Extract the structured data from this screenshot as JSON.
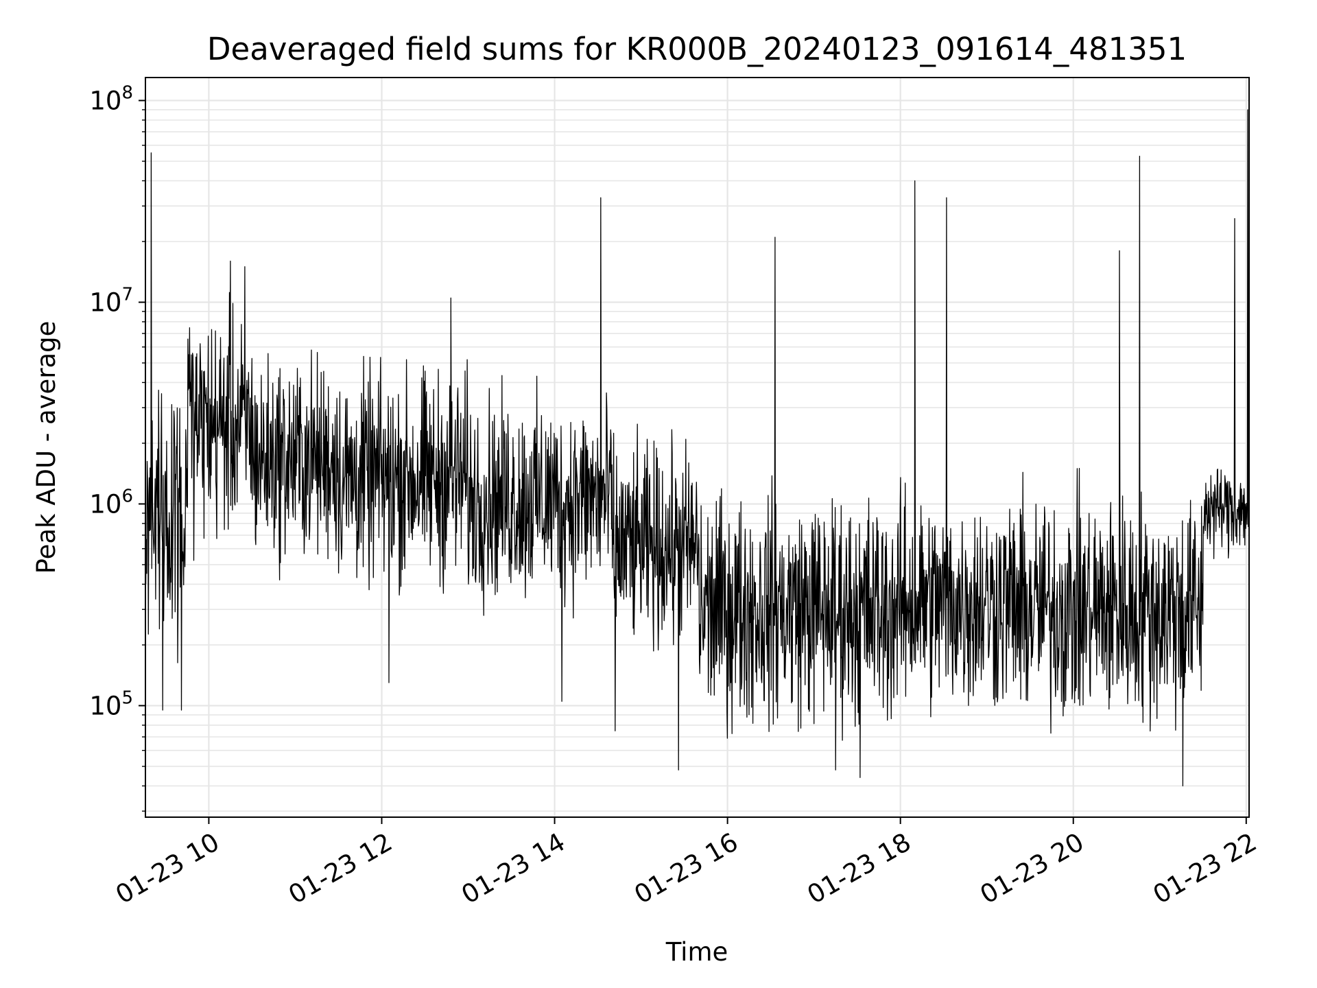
{
  "chart_data": {
    "type": "line",
    "title": "Deaveraged field sums for KR000B_20240123_091614_481351",
    "xlabel": "Time",
    "ylabel": "Peak ADU - average",
    "xscale": "time",
    "yscale": "log",
    "xlim": [
      "2024-01-23 09:16",
      "2024-01-23 22:02"
    ],
    "ylim": [
      28000,
      130000000
    ],
    "x_ticks": [
      {
        "t": "2024-01-23 10:00",
        "label": "01-23 10"
      },
      {
        "t": "2024-01-23 12:00",
        "label": "01-23 12"
      },
      {
        "t": "2024-01-23 14:00",
        "label": "01-23 14"
      },
      {
        "t": "2024-01-23 16:00",
        "label": "01-23 16"
      },
      {
        "t": "2024-01-23 18:00",
        "label": "01-23 18"
      },
      {
        "t": "2024-01-23 20:00",
        "label": "01-23 20"
      },
      {
        "t": "2024-01-23 22:00",
        "label": "01-23 22"
      }
    ],
    "y_ticks": [
      {
        "value": 100000,
        "base": "10",
        "exp": "5"
      },
      {
        "value": 1000000,
        "base": "10",
        "exp": "6"
      },
      {
        "value": 10000000,
        "base": "10",
        "exp": "7"
      },
      {
        "value": 100000000,
        "base": "10",
        "exp": "8"
      }
    ],
    "grid": true,
    "line_color": "#000000",
    "segments": [
      {
        "x_start": "2024-01-23 09:16",
        "x_end": "2024-01-23 09:45",
        "low": 150000,
        "high": 5000000
      },
      {
        "x_start": "2024-01-23 09:45",
        "x_end": "2024-01-23 10:30",
        "low": 500000,
        "high": 12000000
      },
      {
        "x_start": "2024-01-23 10:30",
        "x_end": "2024-01-23 11:30",
        "low": 400000,
        "high": 7000000
      },
      {
        "x_start": "2024-01-23 11:30",
        "x_end": "2024-01-23 13:00",
        "low": 300000,
        "high": 6000000
      },
      {
        "x_start": "2024-01-23 13:00",
        "x_end": "2024-01-23 14:40",
        "low": 250000,
        "high": 4500000
      },
      {
        "x_start": "2024-01-23 14:40",
        "x_end": "2024-01-23 15:40",
        "low": 150000,
        "high": 2500000
      },
      {
        "x_start": "2024-01-23 15:40",
        "x_end": "2024-01-23 18:00",
        "low": 60000,
        "high": 1500000
      },
      {
        "x_start": "2024-01-23 18:00",
        "x_end": "2024-01-23 19:20",
        "low": 70000,
        "high": 1500000
      },
      {
        "x_start": "2024-01-23 19:20",
        "x_end": "2024-01-23 21:30",
        "low": 60000,
        "high": 1500000
      },
      {
        "x_start": "2024-01-23 21:30",
        "x_end": "2024-01-23 22:02",
        "low": 500000,
        "high": 1800000
      }
    ],
    "spikes": [
      {
        "t": "2024-01-23 09:20",
        "value": 55000000
      },
      {
        "t": "2024-01-23 10:15",
        "value": 16000000
      },
      {
        "t": "2024-01-23 10:25",
        "value": 15000000
      },
      {
        "t": "2024-01-23 12:48",
        "value": 10500000
      },
      {
        "t": "2024-01-23 14:32",
        "value": 33000000
      },
      {
        "t": "2024-01-23 16:33",
        "value": 21000000
      },
      {
        "t": "2024-01-23 18:10",
        "value": 40000000
      },
      {
        "t": "2024-01-23 18:32",
        "value": 33000000
      },
      {
        "t": "2024-01-23 20:32",
        "value": 18000000
      },
      {
        "t": "2024-01-23 20:46",
        "value": 53000000
      },
      {
        "t": "2024-01-23 21:52",
        "value": 26000000
      },
      {
        "t": "2024-01-23 22:01",
        "value": 90000000
      }
    ],
    "dips": [
      {
        "t": "2024-01-23 09:28",
        "value": 95000.0
      },
      {
        "t": "2024-01-23 09:41",
        "value": 95000
      },
      {
        "t": "2024-01-23 12:05",
        "value": 130000
      },
      {
        "t": "2024-01-23 14:05",
        "value": 105000
      },
      {
        "t": "2024-01-23 14:42",
        "value": 75000
      },
      {
        "t": "2024-01-23 15:26",
        "value": 48000
      },
      {
        "t": "2024-01-23 17:15",
        "value": 48000
      },
      {
        "t": "2024-01-23 17:32",
        "value": 44000
      },
      {
        "t": "2024-01-23 21:16",
        "value": 40000
      }
    ]
  }
}
